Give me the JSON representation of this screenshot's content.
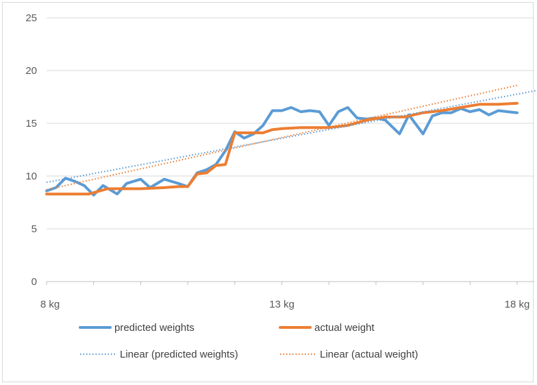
{
  "chart_data": {
    "type": "line",
    "title": "",
    "xlabel": "",
    "ylabel": "",
    "ylim": [
      0,
      25
    ],
    "xlim": [
      8,
      18
    ],
    "y_ticks": [
      "0",
      "5",
      "10",
      "15",
      "20",
      "25"
    ],
    "x_ticks": [
      "8 kg",
      "13 kg",
      "18 kg"
    ],
    "grid": "horizontal",
    "legend_position": "bottom",
    "colors": {
      "predicted": "#5b9bd5",
      "actual": "#ed7d31",
      "gridline": "#d9d9d9",
      "axis": "#bfbfbf"
    },
    "series": [
      {
        "name": "predicted weights",
        "style": "solid",
        "x": [
          8,
          8.2,
          8.4,
          8.6,
          8.8,
          9,
          9.2,
          9.5,
          9.7,
          10,
          10.2,
          10.5,
          10.8,
          11,
          11.2,
          11.4,
          11.6,
          11.8,
          12,
          12.2,
          12.4,
          12.6,
          12.8,
          13,
          13.2,
          13.4,
          13.6,
          13.8,
          14,
          14.2,
          14.4,
          14.6,
          14.8,
          15,
          15.2,
          15.5,
          15.7,
          16,
          16.2,
          16.4,
          16.6,
          16.8,
          17,
          17.2,
          17.4,
          17.6,
          17.8,
          18
        ],
        "values": [
          8.6,
          8.9,
          9.8,
          9.5,
          9.1,
          8.2,
          9.1,
          8.3,
          9.3,
          9.7,
          8.9,
          9.7,
          9.3,
          9.0,
          10.3,
          10.6,
          11.1,
          12.4,
          14.2,
          13.6,
          14.0,
          14.8,
          16.2,
          16.2,
          16.5,
          16.1,
          16.2,
          16.1,
          14.8,
          16.1,
          16.5,
          15.5,
          15.4,
          15.5,
          15.3,
          14.0,
          15.8,
          14.0,
          15.7,
          16.0,
          16.0,
          16.4,
          16.1,
          16.3,
          15.8,
          16.2,
          16.1,
          16.0
        ],
        "x_note": "",
        "values_note": ""
      },
      {
        "name": "actual weight",
        "style": "solid",
        "x": [
          8,
          8.5,
          8.9,
          9.3,
          10,
          10.5,
          10.8,
          11,
          11.2,
          11.4,
          11.6,
          11.8,
          12,
          12.2,
          12.6,
          12.8,
          13,
          13.4,
          13.8,
          14,
          14.4,
          14.8,
          15.2,
          15.6,
          16,
          16.4,
          16.8,
          17.2,
          17.6,
          18
        ],
        "values": [
          8.3,
          8.3,
          8.3,
          8.8,
          8.8,
          8.9,
          9.0,
          9.0,
          10.2,
          10.3,
          11.0,
          11.1,
          14.1,
          14.1,
          14.1,
          14.4,
          14.5,
          14.6,
          14.6,
          14.6,
          14.8,
          15.3,
          15.6,
          15.6,
          16.0,
          16.2,
          16.5,
          16.8,
          16.8,
          16.9
        ],
        "x_note": "",
        "values_note": ""
      },
      {
        "name": "Linear (predicted weights)",
        "style": "dotted",
        "x": [
          8,
          19.0
        ],
        "values": [
          9.4,
          18.6
        ]
      },
      {
        "name": "Linear (actual weight)",
        "style": "dotted",
        "x": [
          8,
          18
        ],
        "values": [
          8.7,
          18.6
        ]
      }
    ]
  }
}
